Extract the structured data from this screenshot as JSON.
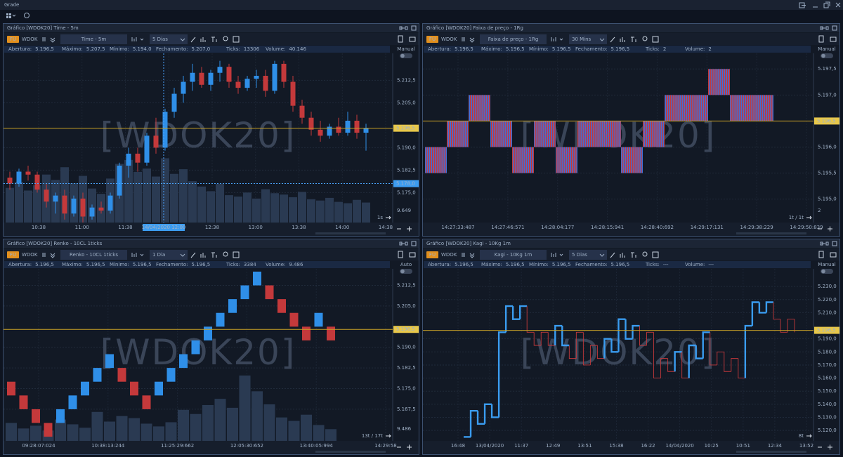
{
  "window": {
    "title": "Grade"
  },
  "panels": [
    {
      "title": "Gráfico [WDOK20] Time - 5m",
      "badge": "FU",
      "symbol": "WDOK",
      "timeframe": "Time - 5m",
      "period": "5 Dias",
      "info": [
        {
          "label": "Abertura:",
          "value": "5.196,5"
        },
        {
          "label": "Máximo:",
          "value": "5.207,5"
        },
        {
          "label": "Mínimo:",
          "value": "5.194,0"
        },
        {
          "label": "Fechamento:",
          "value": "5.207,0"
        },
        {
          "label": "Ticks:",
          "value": "13306"
        },
        {
          "label": "Volume:",
          "value": "40.146"
        }
      ],
      "mode": "Manual",
      "watermark": "[WDOK20]",
      "corner": "1s",
      "chart": {
        "type": "candlestick",
        "ylim": [
          5165,
          5221.5
        ],
        "yticks": [
          {
            "value": 5212.5,
            "label": "5.212,5"
          },
          {
            "value": 5205,
            "label": "5.205,0"
          },
          {
            "value": 5190,
            "label": "5.190,0"
          },
          {
            "value": 5182.5,
            "label": "5.182,5"
          },
          {
            "value": 5175,
            "label": "5.175,0"
          }
        ],
        "price": {
          "value": 5196.5,
          "label": "5.196,5"
        },
        "cursor_price": {
          "value": 5178,
          "label": "5.178,0"
        },
        "cursor_time": "14/04/2020 12:00",
        "xlabels": [
          "10:38",
          "11:00",
          "11:38",
          "12:00",
          "12:38",
          "13:00",
          "13:38",
          "14:00",
          "14:38"
        ],
        "up_color": "#2f8fe8",
        "down_color": "#c4393b",
        "candles": [
          [
            5180,
            5182,
            5176,
            5178
          ],
          [
            5178,
            5183,
            5177,
            5182
          ],
          [
            5182,
            5184,
            5179,
            5181
          ],
          [
            5181,
            5182,
            5175,
            5176
          ],
          [
            5176,
            5178,
            5170,
            5172
          ],
          [
            5172,
            5175,
            5168,
            5174
          ],
          [
            5174,
            5176,
            5166,
            5168
          ],
          [
            5168,
            5174,
            5167,
            5173
          ],
          [
            5173,
            5175,
            5165,
            5167
          ],
          [
            5167,
            5171,
            5166,
            5170
          ],
          [
            5170,
            5172,
            5168,
            5169
          ],
          [
            5169,
            5175,
            5168,
            5174
          ],
          [
            5174,
            5185,
            5173,
            5184
          ],
          [
            5184,
            5190,
            5180,
            5188
          ],
          [
            5188,
            5190,
            5182,
            5185
          ],
          [
            5185,
            5195,
            5184,
            5194
          ],
          [
            5194,
            5200,
            5188,
            5190
          ],
          [
            5190,
            5203,
            5189,
            5202
          ],
          [
            5202,
            5210,
            5200,
            5208
          ],
          [
            5208,
            5214,
            5205,
            5212
          ],
          [
            5212,
            5218,
            5209,
            5215
          ],
          [
            5215,
            5217,
            5210,
            5211
          ],
          [
            5211,
            5216,
            5209,
            5215
          ],
          [
            5215,
            5219,
            5212,
            5217
          ],
          [
            5217,
            5218,
            5210,
            5212
          ],
          [
            5212,
            5214,
            5208,
            5210
          ],
          [
            5210,
            5214,
            5209,
            5213
          ],
          [
            5213,
            5216,
            5210,
            5214
          ],
          [
            5214,
            5216,
            5207,
            5209
          ],
          [
            5209,
            5219,
            5208,
            5218
          ],
          [
            5218,
            5219,
            5210,
            5212
          ],
          [
            5212,
            5214,
            5202,
            5204
          ],
          [
            5204,
            5206,
            5198,
            5200
          ],
          [
            5200,
            5202,
            5194,
            5196
          ],
          [
            5196,
            5199,
            5192,
            5194
          ],
          [
            5194,
            5198,
            5193,
            5197
          ],
          [
            5197,
            5200,
            5194,
            5195
          ],
          [
            5195,
            5202,
            5194,
            5199
          ],
          [
            5199,
            5201,
            5193,
            5195
          ],
          [
            5195,
            5198,
            5189,
            5196.5
          ]
        ],
        "volumes": [
          5200,
          6100,
          4800,
          5600,
          7200,
          6400,
          8300,
          5900,
          7000,
          5100,
          4300,
          6600,
          8800,
          9400,
          7600,
          8100,
          6900,
          9649,
          7300,
          8000,
          6200,
          5400,
          4700,
          5800,
          4100,
          3900,
          4500,
          3600,
          5000,
          4400,
          4200,
          3800,
          4600,
          3500,
          3300,
          3700,
          3100,
          2900,
          3400,
          3000
        ],
        "volume_max": {
          "value": 9649,
          "label": "9.649"
        }
      }
    },
    {
      "title": "Gráfico [WDOK20] Faixa de preço - 1Rg",
      "badge": "FU",
      "symbol": "WDOK",
      "timeframe": "Faixa de preço - 1Rg",
      "period": "30 Mins",
      "info": [
        {
          "label": "Abertura:",
          "value": "5.196,5"
        },
        {
          "label": "Máximo:",
          "value": "5.196,5"
        },
        {
          "label": "Mínimo:",
          "value": "5.196,5"
        },
        {
          "label": "Fechamento:",
          "value": "5.196,5"
        },
        {
          "label": "Ticks:",
          "value": "2"
        },
        {
          "label": "Volume:",
          "value": "2"
        }
      ],
      "mode": "Manual",
      "watermark": "[WDOK20]",
      "corner": "1t / 1t",
      "chart": {
        "type": "range",
        "ylim": [
          5194.55,
          5197.8
        ],
        "yticks": [
          {
            "value": 5197.5,
            "label": "5.197,5"
          },
          {
            "value": 5197,
            "label": "5.197,0"
          },
          {
            "value": 5196,
            "label": "5.196,0"
          },
          {
            "value": 5195.5,
            "label": "5.195,5"
          },
          {
            "value": 5195,
            "label": "5.195,0"
          }
        ],
        "price": {
          "value": 5196.5,
          "label": "5.196,5"
        },
        "xlabels": [
          "14:27:33:487",
          "14:27:46:571",
          "14:28:04:177",
          "14:28:15:941",
          "14:28:40:692",
          "14:29:17:131",
          "14:29:38:229",
          "14:29:50:839"
        ],
        "boxes": [
          [
            5195.5,
            5196
          ],
          [
            5196,
            5196.5
          ],
          [
            5196.5,
            5197
          ],
          [
            5196,
            5196.5
          ],
          [
            5195.5,
            5196
          ],
          [
            5196,
            5196.5
          ],
          [
            5195.5,
            5196
          ],
          [
            5196,
            5196.5
          ],
          [
            5196,
            5196.5
          ],
          [
            5195.5,
            5196
          ],
          [
            5196,
            5196.5
          ],
          [
            5196.5,
            5197
          ],
          [
            5196.5,
            5197
          ],
          [
            5197,
            5197.5
          ],
          [
            5196.5,
            5197
          ],
          [
            5196.5,
            5197
          ]
        ],
        "volume_max": 2
      }
    },
    {
      "title": "Gráfico [WDOK20] Renko - 10CL 1ticks",
      "badge": "FU",
      "symbol": "WDOK",
      "timeframe": "Renko - 10CL 1ticks",
      "period": "1 Dia",
      "info": [
        {
          "label": "Abertura:",
          "value": "5.196,5"
        },
        {
          "label": "Máximo:",
          "value": "5.196,5"
        },
        {
          "label": "Mínimo:",
          "value": "5.196,5"
        },
        {
          "label": "Fechamento:",
          "value": "5.196,5"
        },
        {
          "label": "Ticks:",
          "value": "3384"
        },
        {
          "label": "Volume:",
          "value": "9.486"
        }
      ],
      "mode": "Auto",
      "watermark": "[WDOK20]",
      "corner": "13t / 17t",
      "chart": {
        "type": "renko",
        "ylim": [
          5156,
          5218.5
        ],
        "yticks": [
          {
            "value": 5212.5,
            "label": "5.212,5"
          },
          {
            "value": 5205,
            "label": "5.205,0"
          },
          {
            "value": 5190,
            "label": "5.190,0"
          },
          {
            "value": 5182.5,
            "label": "5.182,5"
          },
          {
            "value": 5175,
            "label": "5.175,0"
          },
          {
            "value": 5167.5,
            "label": "5.167,5"
          }
        ],
        "price": {
          "value": 5196.5,
          "label": "5.196,5"
        },
        "xlabels": [
          "09:28:07:024",
          "10:38:13:244",
          "11:25:29:662",
          "12:05:30:652",
          "13:40:05:994",
          "14:29:58"
        ],
        "up_color": "#2f8fe8",
        "down_color": "#c4393b",
        "bricks": [
          [
            5177.5,
            5172.5
          ],
          [
            5172.5,
            5167.5
          ],
          [
            5167.5,
            5162.5
          ],
          [
            5162.5,
            5157.5
          ],
          [
            5162.5,
            5167.5
          ],
          [
            5167.5,
            5172.5
          ],
          [
            5172.5,
            5177.5
          ],
          [
            5177.5,
            5182.5
          ],
          [
            5182.5,
            5187.5
          ],
          [
            5182.5,
            5177.5
          ],
          [
            5177.5,
            5172.5
          ],
          [
            5172.5,
            5167.5
          ],
          [
            5172.5,
            5177.5
          ],
          [
            5177.5,
            5182.5
          ],
          [
            5182.5,
            5187.5
          ],
          [
            5187.5,
            5192.5
          ],
          [
            5192.5,
            5197.5
          ],
          [
            5197.5,
            5202.5
          ],
          [
            5202.5,
            5207.5
          ],
          [
            5207.5,
            5212.5
          ],
          [
            5212.5,
            5217.5
          ],
          [
            5212.5,
            5207.5
          ],
          [
            5207.5,
            5202.5
          ],
          [
            5202.5,
            5197.5
          ],
          [
            5197.5,
            5192.5
          ],
          [
            5197.5,
            5202.5
          ],
          [
            5197.5,
            5192.5
          ]
        ],
        "volumes": [
          2600,
          1800,
          2200,
          1500,
          3100,
          2400,
          1900,
          4200,
          2800,
          3600,
          3300,
          2500,
          2100,
          2700,
          4500,
          3900,
          5200,
          6100,
          4800,
          9486,
          7200,
          5300,
          3400,
          2900,
          3800,
          2300,
          1700
        ],
        "volume_max": {
          "value": 9486,
          "label": "9.486"
        }
      }
    },
    {
      "title": "Gráfico [WDOK20] Kagi - 10Kg 1m",
      "badge": "FU",
      "symbol": "WDOK",
      "timeframe": "Kagi - 10Kg 1m",
      "period": "5 Dias",
      "info": [
        {
          "label": "Abertura:",
          "value": "5.196,5"
        },
        {
          "label": "Máximo:",
          "value": "5.196,5"
        },
        {
          "label": "Mínimo:",
          "value": "5.196,5"
        },
        {
          "label": "Fechamento:",
          "value": "5.196,5"
        },
        {
          "label": "Ticks:",
          "value": "---"
        },
        {
          "label": "Volume:",
          "value": "---"
        }
      ],
      "mode": "Manual",
      "watermark": "[WDOK20]",
      "corner": "8t",
      "chart": {
        "type": "kagi",
        "ylim": [
          5112,
          5243.5
        ],
        "yticks": [
          {
            "value": 5230,
            "label": "5.230,0"
          },
          {
            "value": 5220,
            "label": "5.220,0"
          },
          {
            "value": 5210,
            "label": "5.210,0"
          },
          {
            "value": 5190,
            "label": "5.190,0"
          },
          {
            "value": 5180,
            "label": "5.180,0"
          },
          {
            "value": 5170,
            "label": "5.170,0"
          },
          {
            "value": 5160,
            "label": "5.160,0"
          },
          {
            "value": 5150,
            "label": "5.150,0"
          },
          {
            "value": 5140,
            "label": "5.140,0"
          },
          {
            "value": 5130,
            "label": "5.130,0"
          },
          {
            "value": 5120,
            "label": "5.120,0"
          }
        ],
        "price": {
          "value": 5196.5,
          "label": "5.196,5"
        },
        "xlabels": [
          "16:48",
          "13/04/2020",
          "11:37",
          "12:49",
          "13:51",
          "15:38",
          "16:22",
          "14/04/2020",
          "10:25",
          "10:51",
          "12:34",
          "13:52"
        ],
        "yang_color": "#3a9cf0",
        "yin_color": "#c4393b",
        "values": [
          5115,
          5135,
          5125,
          5140,
          5130,
          5195,
          5215,
          5205,
          5215,
          5195,
          5185,
          5195,
          5185,
          5200,
          5185,
          5175,
          5195,
          5170,
          5185,
          5175,
          5190,
          5180,
          5205,
          5190,
          5200,
          5185,
          5195,
          5160,
          5175,
          5165,
          5180,
          5160,
          5185,
          5175,
          5195,
          5170,
          5180,
          5165,
          5175,
          5160,
          5200,
          5218,
          5210,
          5218,
          5205,
          5195,
          5205,
          5195
        ]
      }
    }
  ]
}
